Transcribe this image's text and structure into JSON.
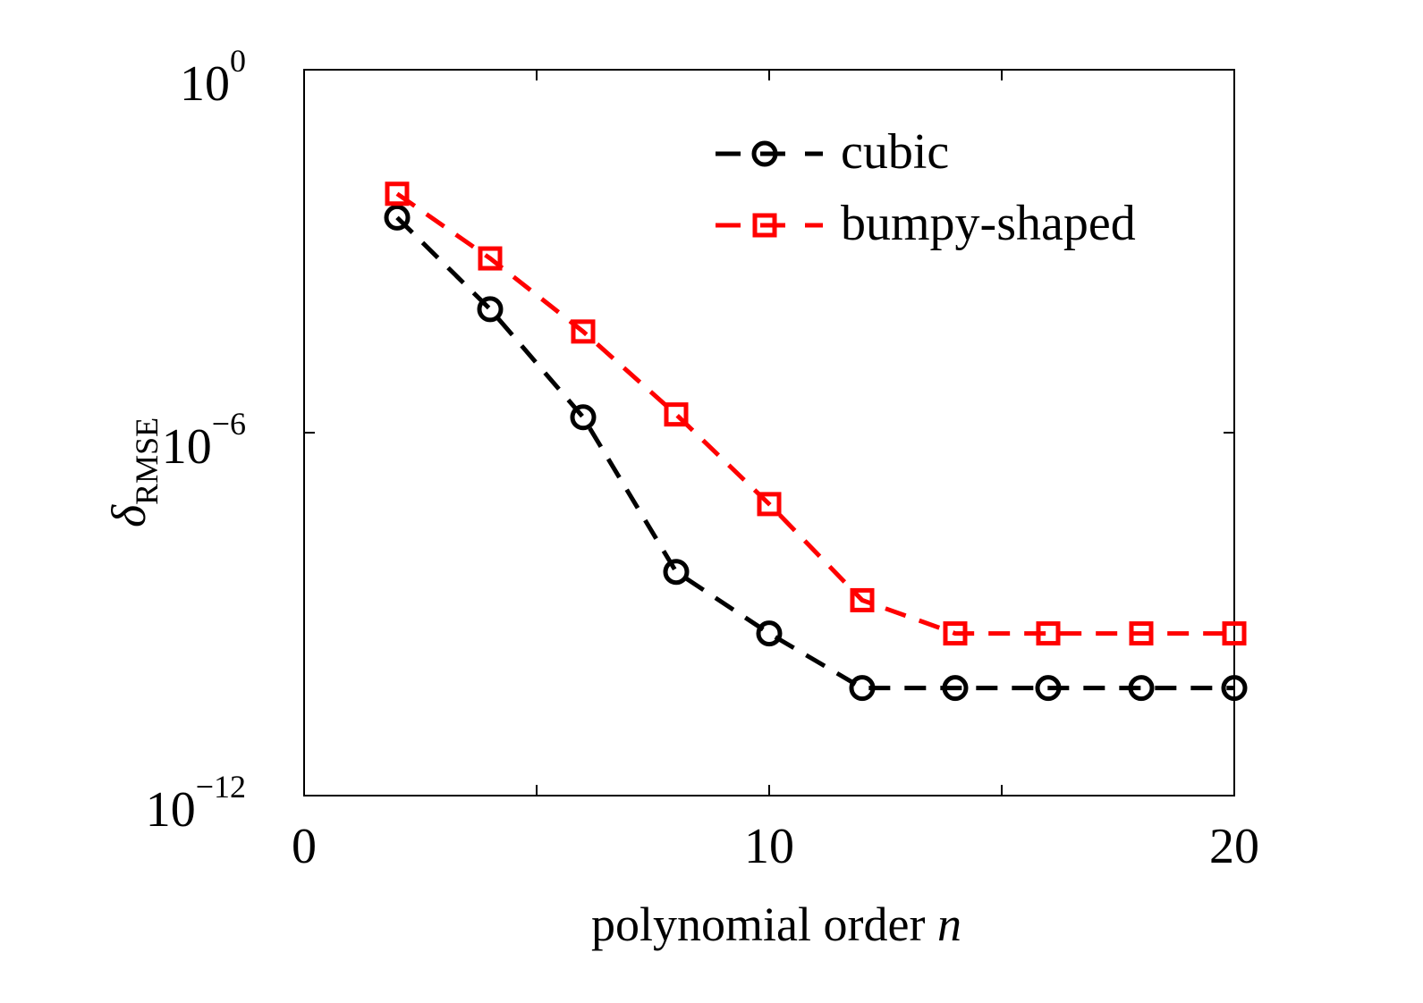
{
  "chart_data": {
    "type": "line",
    "title": "",
    "xlabel": "polynomial order",
    "xlabel_var": "n",
    "ylabel_symbol": "δ",
    "ylabel_subscript": "RMSE",
    "xlim": [
      0,
      20
    ],
    "ylim": [
      1e-12,
      1
    ],
    "yscale": "log",
    "grid": false,
    "legend_position": "top-right",
    "x_ticks": [
      0,
      5,
      10,
      15,
      20
    ],
    "x_tick_labels": [
      "0",
      "",
      "10",
      "",
      "20"
    ],
    "y_ticks": [
      1e-12,
      1e-06,
      1
    ],
    "y_tick_labels": [
      {
        "base": "10",
        "exp": "−12"
      },
      {
        "base": "10",
        "exp": "−6"
      },
      {
        "base": "10",
        "exp": "0"
      }
    ],
    "series": [
      {
        "name": "cubic",
        "color": "#000000",
        "marker": "circle",
        "linestyle": "dashed",
        "x": [
          2,
          4,
          6,
          8,
          10,
          12,
          14,
          16,
          18,
          20
        ],
        "values": [
          0.0036,
          0.00011,
          1.8e-06,
          5e-09,
          4.8e-10,
          6e-11,
          6e-11,
          6e-11,
          6e-11,
          6e-11
        ]
      },
      {
        "name": "bumpy-shaped",
        "color": "#ff0000",
        "marker": "square",
        "linestyle": "dashed",
        "x": [
          2,
          4,
          6,
          8,
          10,
          12,
          14,
          16,
          18,
          20
        ],
        "values": [
          0.0089,
          0.00076,
          4.7e-05,
          2e-06,
          6.6e-08,
          1.7e-09,
          4.8e-10,
          4.8e-10,
          4.8e-10,
          4.8e-10
        ]
      }
    ]
  }
}
